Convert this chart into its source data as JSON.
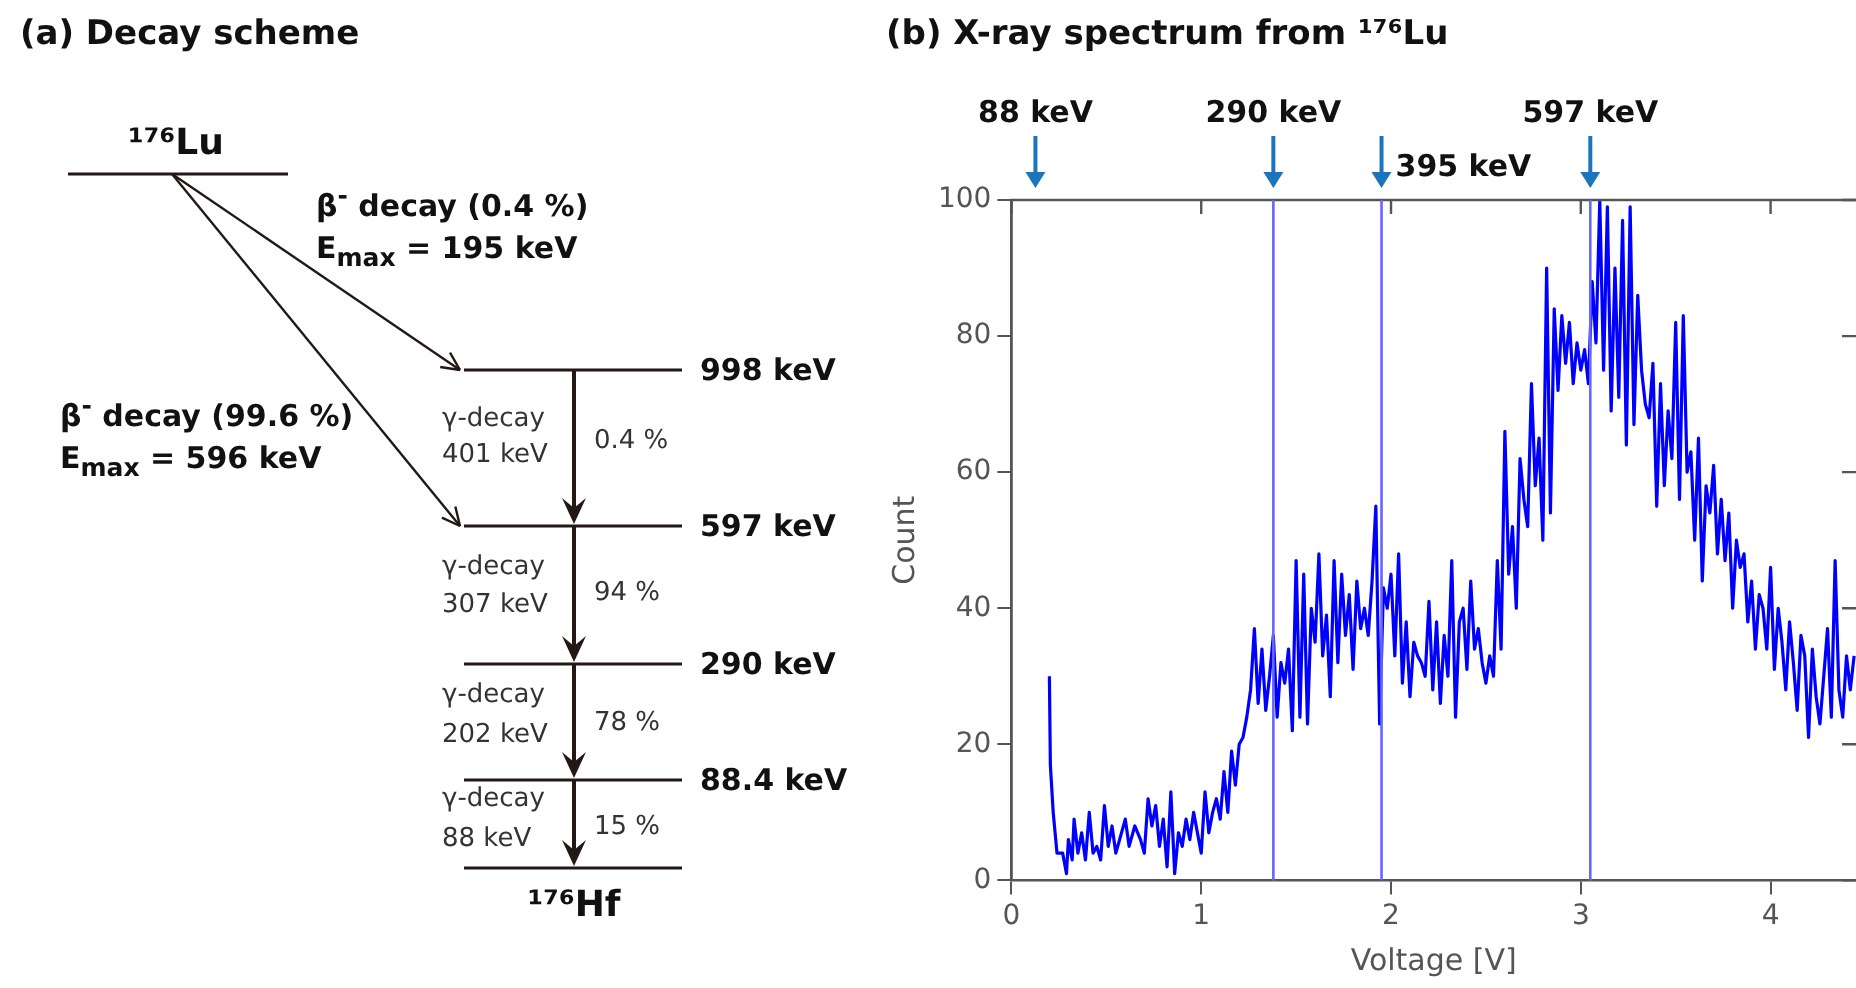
{
  "chart_data": [
    {
      "type": "other",
      "title": "(a) Decay scheme",
      "annotations": [
        "¹⁷⁶Lu",
        "β$^{-}$ decay (0.4 %)",
        "E$_{max}$ = 195 keV",
        "β$^{-}$ decay (99.6 %)",
        "E$_{max}$ = 596 keV",
        "998 keV",
        "597 keV",
        "290 keV",
        "88.4 keV",
        "γ-decay",
        "401 keV",
        "0.4 %",
        "γ-decay",
        "307 keV",
        "94 %",
        "γ-decay",
        "202 keV",
        "78 %",
        "γ-decay",
        "88 keV",
        "15 %",
        "¹⁷⁶Hf"
      ]
    },
    {
      "type": "line",
      "title": "(b) X-ray spectrum from ¹⁷⁶Lu",
      "xlabel": "Voltage [V]",
      "ylabel": "Count",
      "xlim": [
        0,
        4.45
      ],
      "xticks": [
        0,
        1,
        2,
        3,
        4
      ],
      "ylim": [
        0,
        100
      ],
      "yticks": [
        0,
        20,
        40,
        60,
        80,
        100
      ],
      "grid": false,
      "legend": false,
      "marker": "none",
      "line_style": "solid",
      "ref_lines": [
        {
          "axis": "x",
          "value": 1.38,
          "label": "290 keV",
          "color": "#6666ff"
        },
        {
          "axis": "x",
          "value": 1.95,
          "label": "395 keV",
          "color": "#6666ff"
        },
        {
          "axis": "x",
          "value": 3.05,
          "label": "597 keV",
          "color": "#6666ff"
        }
      ],
      "annotations": [
        "88 keV"
      ],
      "series": [
        {
          "color": "#0000ff",
          "x": [
            0.2,
            0.205,
            0.22,
            0.24,
            0.27,
            0.29,
            0.3,
            0.32,
            0.33,
            0.35,
            0.37,
            0.39,
            0.41,
            0.43,
            0.45,
            0.47,
            0.49,
            0.51,
            0.53,
            0.55,
            0.57,
            0.6,
            0.62,
            0.65,
            0.68,
            0.7,
            0.72,
            0.74,
            0.76,
            0.78,
            0.8,
            0.82,
            0.84,
            0.86,
            0.88,
            0.9,
            0.92,
            0.94,
            0.96,
            0.98,
            1.0,
            1.02,
            1.04,
            1.06,
            1.08,
            1.1,
            1.12,
            1.14,
            1.16,
            1.18,
            1.2,
            1.22,
            1.24,
            1.26,
            1.28,
            1.3,
            1.32,
            1.34,
            1.36,
            1.38,
            1.4,
            1.42,
            1.44,
            1.46,
            1.48,
            1.5,
            1.52,
            1.54,
            1.56,
            1.58,
            1.6,
            1.62,
            1.64,
            1.66,
            1.68,
            1.7,
            1.72,
            1.74,
            1.76,
            1.78,
            1.8,
            1.82,
            1.84,
            1.86,
            1.88,
            1.9,
            1.92,
            1.94,
            1.96,
            1.98,
            2.0,
            2.02,
            2.04,
            2.06,
            2.08,
            2.1,
            2.12,
            2.14,
            2.16,
            2.18,
            2.2,
            2.22,
            2.24,
            2.26,
            2.28,
            2.3,
            2.32,
            2.34,
            2.36,
            2.38,
            2.4,
            2.42,
            2.44,
            2.46,
            2.48,
            2.5,
            2.52,
            2.54,
            2.56,
            2.58,
            2.6,
            2.62,
            2.64,
            2.66,
            2.68,
            2.7,
            2.72,
            2.74,
            2.76,
            2.78,
            2.8,
            2.82,
            2.84,
            2.86,
            2.88,
            2.9,
            2.92,
            2.94,
            2.96,
            2.98,
            3.0,
            3.02,
            3.04,
            3.06,
            3.08,
            3.1,
            3.12,
            3.14,
            3.16,
            3.18,
            3.2,
            3.22,
            3.24,
            3.26,
            3.28,
            3.3,
            3.32,
            3.34,
            3.36,
            3.38,
            3.4,
            3.42,
            3.44,
            3.46,
            3.48,
            3.5,
            3.52,
            3.54,
            3.56,
            3.58,
            3.6,
            3.62,
            3.64,
            3.66,
            3.68,
            3.7,
            3.72,
            3.74,
            3.76,
            3.78,
            3.8,
            3.82,
            3.84,
            3.86,
            3.88,
            3.9,
            3.92,
            3.94,
            3.96,
            3.98,
            4.0,
            4.02,
            4.04,
            4.06,
            4.08,
            4.1,
            4.12,
            4.14,
            4.16,
            4.18,
            4.2,
            4.22,
            4.24,
            4.26,
            4.28,
            4.3,
            4.32,
            4.34,
            4.36,
            4.38,
            4.4,
            4.42,
            4.44
          ],
          "values": [
            30,
            17,
            10,
            4,
            4,
            1,
            6,
            3,
            9,
            4,
            7,
            3,
            10,
            4,
            5,
            3,
            11,
            5,
            8,
            4,
            6,
            9,
            5,
            8,
            6,
            4,
            12,
            8,
            11,
            5,
            9,
            2,
            13,
            1,
            7,
            5,
            9,
            6,
            10,
            7,
            4,
            13,
            7,
            10,
            12,
            9,
            16,
            10,
            19,
            14,
            20,
            21,
            24,
            28,
            37,
            26,
            34,
            25,
            30,
            36,
            24,
            32,
            29,
            34,
            22,
            47,
            24,
            45,
            23,
            40,
            35,
            48,
            33,
            39,
            27,
            47,
            32,
            45,
            36,
            42,
            31,
            44,
            37,
            40,
            36,
            44,
            55,
            23,
            43,
            40,
            45,
            33,
            48,
            29,
            38,
            27,
            35,
            33,
            32,
            30,
            41,
            28,
            38,
            26,
            36,
            30,
            47,
            24,
            38,
            40,
            31,
            44,
            34,
            37,
            32,
            29,
            33,
            30,
            47,
            34,
            66,
            45,
            52,
            40,
            62,
            56,
            52,
            73,
            58,
            65,
            50,
            90,
            54,
            84,
            72,
            83,
            76,
            82,
            73,
            79,
            75,
            78,
            73,
            88,
            79,
            100,
            75,
            99,
            69,
            90,
            71,
            97,
            64,
            99,
            67,
            86,
            75,
            70,
            68,
            76,
            55,
            73,
            58,
            69,
            62,
            82,
            56,
            83,
            60,
            63,
            50,
            65,
            44,
            58,
            54,
            61,
            48,
            56,
            47,
            54,
            40,
            50,
            46,
            48,
            38,
            44,
            34,
            42,
            40,
            34,
            46,
            31,
            40,
            35,
            28,
            38,
            32,
            25,
            36,
            33,
            21,
            34,
            27,
            23,
            30,
            37,
            24,
            47,
            28,
            24,
            33,
            28,
            33
          ]
        }
      ]
    }
  ]
}
